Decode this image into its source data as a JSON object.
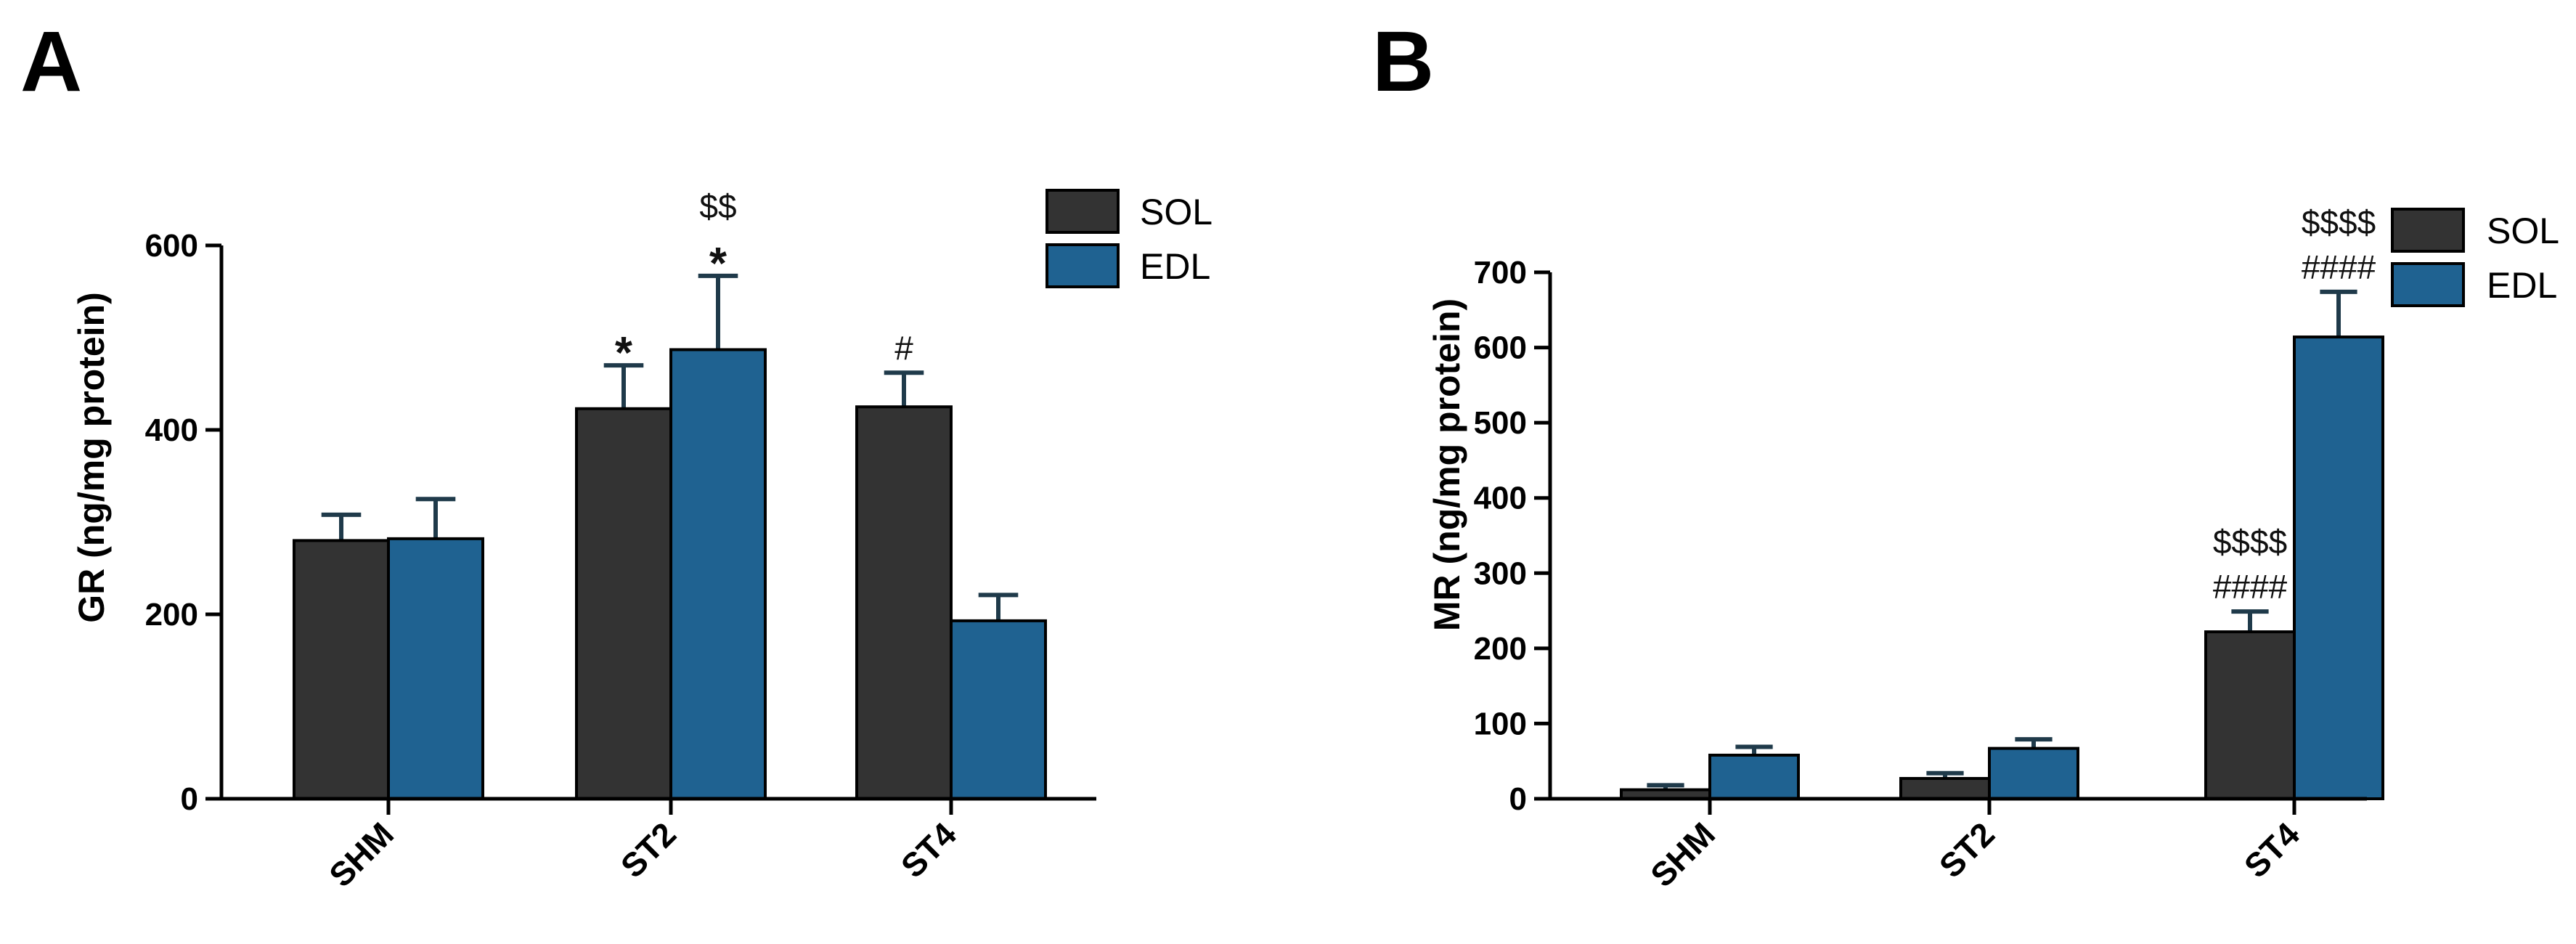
{
  "colors": {
    "SOL": "#333333",
    "EDL": "#1f6291",
    "errorbar": "#1f3a4a"
  },
  "chart_data": [
    {
      "panel": "A",
      "type": "bar",
      "ylabel": "GR (ng/mg protein)",
      "categories": [
        "SHM",
        "ST2",
        "ST4"
      ],
      "ylim": [
        0,
        600
      ],
      "yticks": [
        0,
        200,
        400,
        600
      ],
      "legend": [
        "SOL",
        "EDL"
      ],
      "legend_position": "top-right",
      "series": [
        {
          "name": "SOL",
          "values": [
            280,
            423,
            425
          ],
          "errors": [
            28,
            47,
            37
          ],
          "annotations": [
            "",
            "*",
            "#"
          ]
        },
        {
          "name": "EDL",
          "values": [
            282,
            487,
            193
          ],
          "errors": [
            43,
            80,
            28
          ],
          "annotations": [
            "",
            "*\n$$",
            ""
          ]
        }
      ]
    },
    {
      "panel": "B",
      "type": "bar",
      "ylabel": "MR (ng/mg protein)",
      "categories": [
        "SHM",
        "ST2",
        "ST4"
      ],
      "ylim": [
        0,
        700
      ],
      "yticks": [
        0,
        100,
        200,
        300,
        400,
        500,
        600,
        700
      ],
      "legend": [
        "SOL",
        "EDL"
      ],
      "legend_position": "top-right",
      "series": [
        {
          "name": "SOL",
          "values": [
            12,
            27,
            222
          ],
          "errors": [
            6,
            7,
            27
          ],
          "annotations": [
            "",
            "",
            "####\n$$$$"
          ]
        },
        {
          "name": "EDL",
          "values": [
            58,
            67,
            614
          ],
          "errors": [
            11,
            12,
            60
          ],
          "annotations": [
            "",
            "",
            "####\n$$$$"
          ]
        }
      ]
    }
  ]
}
